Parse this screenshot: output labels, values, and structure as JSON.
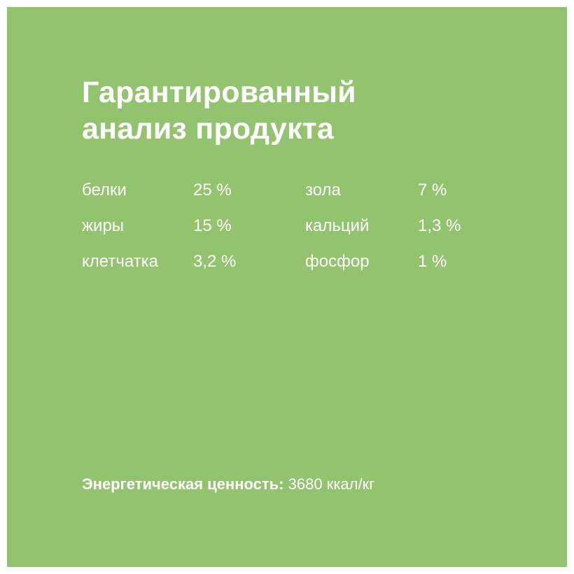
{
  "title": {
    "line1": "Гарантированный",
    "line2": "анализ продукта"
  },
  "nutrients": [
    {
      "left_name": "белки",
      "left_value": "25 %",
      "right_name": "зола",
      "right_value": "7 %"
    },
    {
      "left_name": "жиры",
      "left_value": "15 %",
      "right_name": "кальций",
      "right_value": "1,3 %"
    },
    {
      "left_name": "клетчатка",
      "left_value": "3,2 %",
      "right_name": "фосфор",
      "right_value": "1 %"
    }
  ],
  "energy": {
    "label": "Энергетическая ценность:",
    "value": "3680 ккал/кг"
  },
  "colors": {
    "background": "#93c36e",
    "text": "#ffffff"
  }
}
